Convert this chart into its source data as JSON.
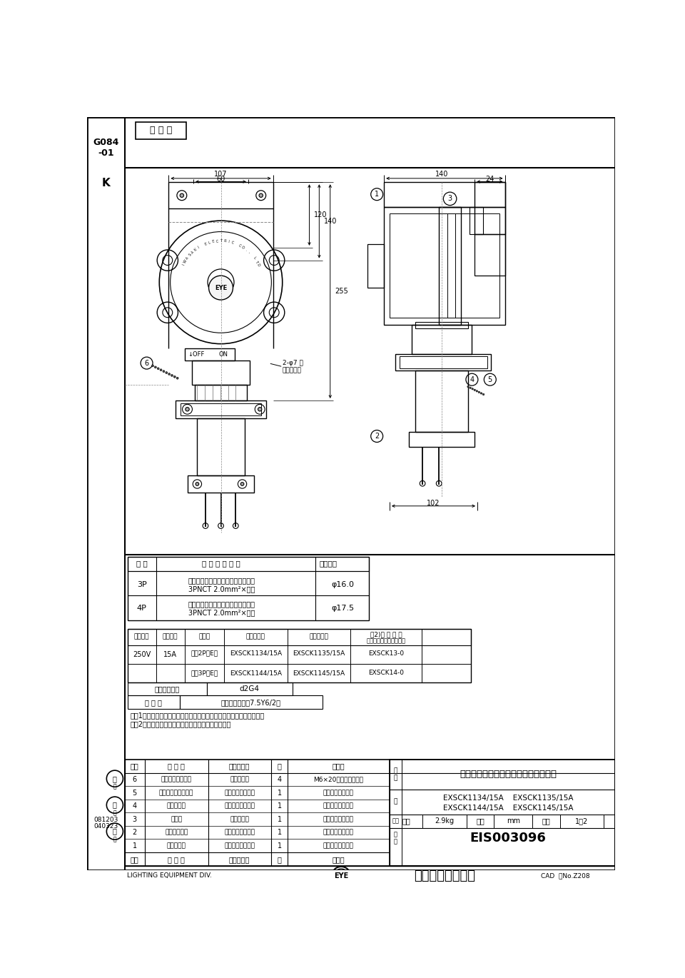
{
  "page_bg": "#ffffff",
  "title_product": "耐圧防爆形インターロックコンセント",
  "product_codes_line1": "EXSCK1134/15A    EXSCK1135/15A",
  "product_codes_line2": "EXSCK1144/15A    EXSCK1145/15A",
  "drawing_no": "EIS003096",
  "cad_no": "CAD  図No.Z208",
  "company": "岩崎電気株式会社",
  "lighting_div": "LIGHTING EQUIPMENT DIV.",
  "doc_id": "G084\n-01",
  "doc_k": "K",
  "date1": "081203",
  "date2": "040323",
  "indoor_label": "屋 内 用",
  "weight": "2.9kg",
  "unit": "mm",
  "scale": "1：2",
  "bousou_val": "d2G4",
  "shikue_val": "（近似マンセル7.5Y6/2）",
  "note1": "注）1．一方出としても使えるようにプラグを１個付置させています。",
  "note2": "　　2．製品は本体形式のみの表示になっています。",
  "table1_headers": [
    "極 数",
    "適 合 ケ ー ブ ル",
    "仕上外径"
  ],
  "table1_r1_col1": "3P",
  "table1_r1_col2a": "クロロプレンキャブタイヤケーブル",
  "table1_r1_col2b": "3PNCT 2.0mm²×３心",
  "table1_r1_col3": "φ16.0",
  "table1_r2_col1": "4P",
  "table1_r2_col2a": "クロロプレンキャブタイヤケーブル",
  "table1_r2_col2b": "3PNCT 2.0mm²×４心",
  "table1_r2_col3": "φ17.5",
  "t2h1": "定格電圧",
  "t2h2": "定格電流",
  "t2h3": "極　数",
  "t2h4": "１６ニ方出",
  "t2h5": "２２ニ方出",
  "t2h6a": "注2)本 体 形 式",
  "t2h6b": "（型式検定合格証形式）",
  "t2r1c1": "250V",
  "t2r1c2": "15A",
  "t2r1c3": "３（2P＋E）",
  "t2r1c4": "EXSCK1134/15A",
  "t2r1c5": "EXSCK1135/15A",
  "t2r1c6": "EXSCK13-0",
  "t2r2c3": "４（3P＋E）",
  "t2r2c4": "EXSCK1144/15A",
  "t2r2c5": "EXSCK1145/15A",
  "t2r2c6": "EXSCK14-0",
  "bousou_label": "防爆構造記号",
  "shikue_label": "仕 上 色",
  "parts": [
    {
      "no": "6",
      "name": "カバー締付ボルト",
      "mat": "ステンレス",
      "qty": "4",
      "note": "M6×20（六角ボルト）"
    },
    {
      "no": "5",
      "name": "プラグ挿入口カバー",
      "mat": "アルミダイカスト",
      "qty": "1",
      "note": "メラミン焼付塗装"
    },
    {
      "no": "4",
      "name": "締付リング",
      "mat": "アルミダイカスト",
      "qty": "1",
      "note": "メラミン焼付塗装"
    },
    {
      "no": "3",
      "name": "端子箱",
      "mat": "ねずみ鋳物",
      "qty": "1",
      "note": "メラミン焼付塗装"
    },
    {
      "no": "2",
      "name": "プラグホルダ",
      "mat": "アルミダイカスト",
      "qty": "1",
      "note": "メラミン焼付塗装"
    },
    {
      "no": "1",
      "name": "本体カバー",
      "mat": "アルミダイカスト",
      "qty": "1",
      "note": "メラミン焼付塗装"
    }
  ],
  "pt_hdr": [
    "部番",
    "部 品 名",
    "材質・材厚",
    "枚",
    "値　考"
  ]
}
